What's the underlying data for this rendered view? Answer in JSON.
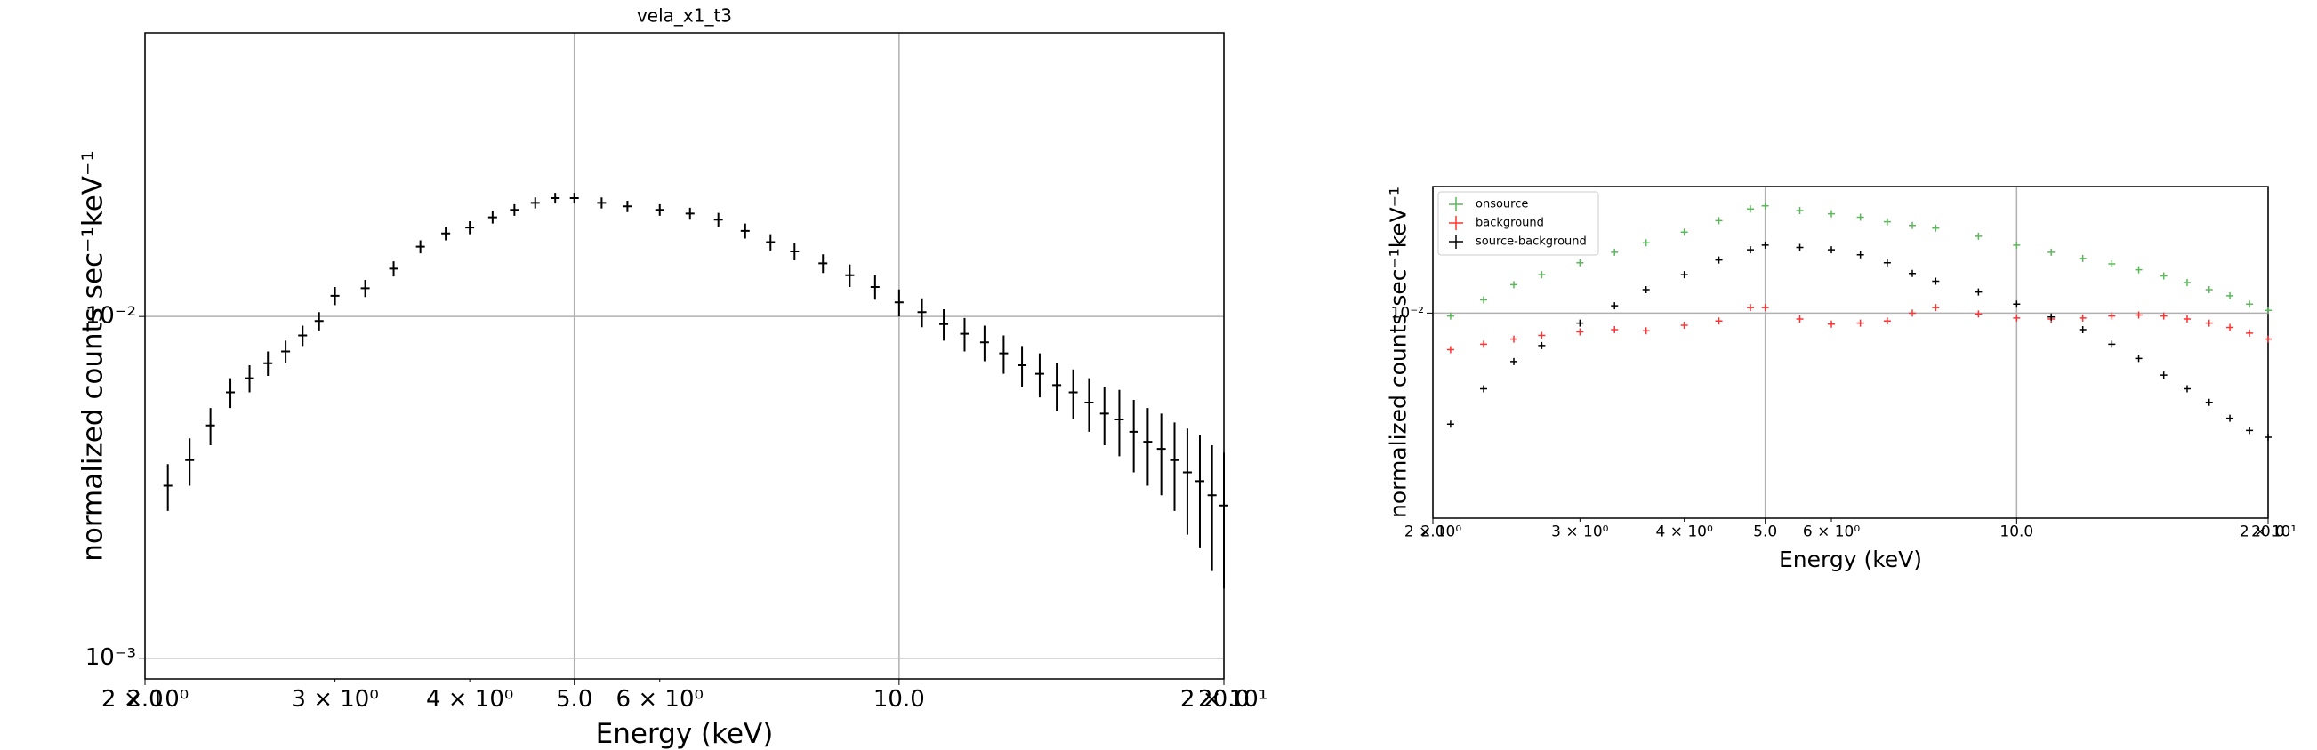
{
  "chart_data": [
    {
      "type": "errorbar",
      "title": "vela_x1_t3",
      "xlabel": "Energy (keV)",
      "ylabel": "normalized counts sec⁻¹keV⁻¹",
      "xlog": true,
      "ylog": true,
      "grid": true,
      "xlim": [
        2,
        20
      ],
      "ylim": [
        0.00087,
        0.0676
      ],
      "xticks": [
        {
          "value": 2,
          "label": "2.0"
        },
        {
          "value": 5,
          "label": "5.0"
        },
        {
          "value": 10,
          "label": "10.0"
        },
        {
          "value": 20,
          "label": "20.0"
        }
      ],
      "xminorticks": [
        {
          "value": 2,
          "label": "2 × 10⁰"
        },
        {
          "value": 3,
          "label": "3 × 10⁰"
        },
        {
          "value": 4,
          "label": "4 × 10⁰"
        },
        {
          "value": 6,
          "label": "6 × 10⁰"
        },
        {
          "value": 20,
          "label": "2 × 10¹"
        }
      ],
      "yticks": [
        {
          "value": 0.01,
          "label": "10⁻²"
        },
        {
          "value": 0.001,
          "label": "10⁻³"
        }
      ],
      "x": [
        2.1,
        2.2,
        2.3,
        2.4,
        2.5,
        2.6,
        2.7,
        2.8,
        2.9,
        3.0,
        3.2,
        3.4,
        3.6,
        3.8,
        4.0,
        4.2,
        4.4,
        4.6,
        4.8,
        5.0,
        5.3,
        5.6,
        6.0,
        6.4,
        6.8,
        7.2,
        7.6,
        8.0,
        8.5,
        9.0,
        9.5,
        10,
        10.5,
        11,
        11.5,
        12,
        12.5,
        13,
        13.5,
        14,
        14.5,
        15,
        15.5,
        16,
        16.5,
        17,
        17.5,
        18,
        18.5,
        19,
        19.5,
        20
      ],
      "series": [
        {
          "color": "#000000",
          "values": [
            0.0032,
            0.0038,
            0.0048,
            0.006,
            0.0066,
            0.0073,
            0.0079,
            0.0088,
            0.0097,
            0.0115,
            0.0121,
            0.0138,
            0.016,
            0.0175,
            0.0182,
            0.0195,
            0.0205,
            0.0215,
            0.0222,
            0.0222,
            0.0215,
            0.021,
            0.0205,
            0.02,
            0.0192,
            0.0178,
            0.0165,
            0.0155,
            0.0143,
            0.0132,
            0.0122,
            0.011,
            0.0103,
            0.0095,
            0.0089,
            0.0084,
            0.0078,
            0.0072,
            0.0068,
            0.0063,
            0.006,
            0.0056,
            0.0052,
            0.005,
            0.0046,
            0.0043,
            0.0041,
            0.0038,
            0.0035,
            0.0033,
            0.003,
            0.0028
          ],
          "errors": [
            0.0005,
            0.0006,
            0.0006,
            0.0006,
            0.0006,
            0.0006,
            0.0006,
            0.0006,
            0.0006,
            0.0007,
            0.0007,
            0.0007,
            0.0007,
            0.0008,
            0.0008,
            0.0008,
            0.0008,
            0.0008,
            0.0008,
            0.0008,
            0.0008,
            0.0008,
            0.0008,
            0.0008,
            0.0009,
            0.0009,
            0.0009,
            0.0009,
            0.0009,
            0.001,
            0.001,
            0.001,
            0.001,
            0.001,
            0.001,
            0.001,
            0.001,
            0.001,
            0.001,
            0.001,
            0.001,
            0.001,
            0.001,
            0.0011,
            0.0011,
            0.0011,
            0.0011,
            0.0011,
            0.0012,
            0.0012,
            0.0012,
            0.0012
          ]
        }
      ]
    },
    {
      "type": "errorbar",
      "xlabel": "Energy (keV)",
      "ylabel": "normalized counts sec⁻¹keV⁻¹",
      "xlog": true,
      "ylog": true,
      "grid": true,
      "legend": "upper left",
      "xlim": [
        2,
        20
      ],
      "ylim": [
        0.00115,
        0.038
      ],
      "xticks": [
        {
          "value": 2,
          "label": "2.0"
        },
        {
          "value": 5,
          "label": "5.0"
        },
        {
          "value": 10,
          "label": "10.0"
        },
        {
          "value": 20,
          "label": "20.0"
        }
      ],
      "xminorticks": [
        {
          "value": 2,
          "label": "2 × 10⁰"
        },
        {
          "value": 3,
          "label": "3 × 10⁰"
        },
        {
          "value": 4,
          "label": "4 × 10⁰"
        },
        {
          "value": 6,
          "label": "6 × 10⁰"
        },
        {
          "value": 20,
          "label": "2 × 10¹"
        }
      ],
      "yticks": [
        {
          "value": 0.01,
          "label": "10⁻²"
        }
      ],
      "x": [
        2.1,
        2.3,
        2.5,
        2.7,
        3.0,
        3.3,
        3.6,
        4.0,
        4.4,
        4.8,
        5.0,
        5.5,
        6.0,
        6.5,
        7.0,
        7.5,
        8.0,
        9.0,
        10,
        11,
        12,
        13,
        14,
        15,
        16,
        17,
        18,
        19,
        20
      ],
      "series": [
        {
          "name": "onsource",
          "color": "#5cb85c",
          "values": [
            0.0097,
            0.0115,
            0.0135,
            0.015,
            0.017,
            0.019,
            0.021,
            0.0235,
            0.0265,
            0.03,
            0.031,
            0.0295,
            0.0285,
            0.0275,
            0.0262,
            0.0252,
            0.0245,
            0.0225,
            0.0205,
            0.019,
            0.0178,
            0.0168,
            0.0158,
            0.0148,
            0.0138,
            0.0128,
            0.012,
            0.011,
            0.0103
          ]
        },
        {
          "name": "background",
          "color": "#ff3333",
          "values": [
            0.0068,
            0.0072,
            0.0076,
            0.0079,
            0.0082,
            0.0084,
            0.0083,
            0.0088,
            0.0092,
            0.0106,
            0.0106,
            0.0094,
            0.0089,
            0.009,
            0.0092,
            0.01,
            0.0106,
            0.0099,
            0.0095,
            0.0094,
            0.0095,
            0.0097,
            0.0098,
            0.0097,
            0.0094,
            0.009,
            0.0086,
            0.0081,
            0.0076
          ]
        },
        {
          "name": "source-background",
          "color": "#000000",
          "values": [
            0.0031,
            0.0045,
            0.006,
            0.0071,
            0.009,
            0.0108,
            0.0128,
            0.015,
            0.0175,
            0.0195,
            0.0205,
            0.02,
            0.0195,
            0.0185,
            0.017,
            0.0152,
            0.014,
            0.0125,
            0.011,
            0.0096,
            0.0084,
            0.0072,
            0.0062,
            0.0052,
            0.0045,
            0.0039,
            0.0033,
            0.0029,
            0.0027
          ]
        }
      ]
    }
  ]
}
